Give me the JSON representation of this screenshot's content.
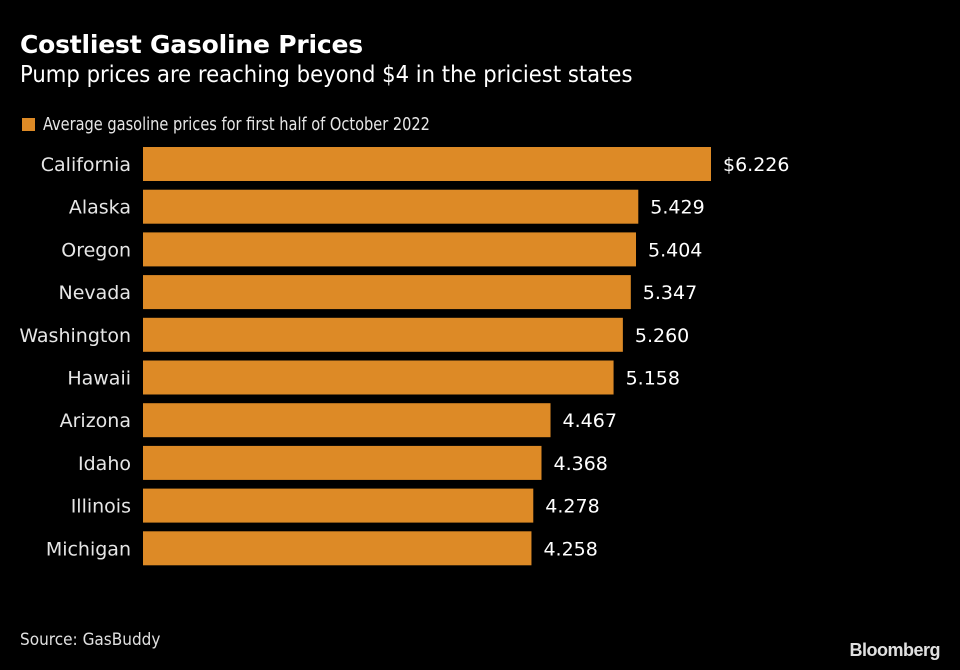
{
  "chart_data": {
    "type": "bar",
    "orientation": "horizontal",
    "title": "Costliest Gasoline Prices",
    "subtitle": "Pump prices are reaching beyond $4 in the priciest states",
    "legend": {
      "label": "Average gasoline prices for first half of October 2022",
      "placement": "top-left"
    },
    "categories": [
      "California",
      "Alaska",
      "Oregon",
      "Nevada",
      "Washington",
      "Hawaii",
      "Arizona",
      "Idaho",
      "Illinois",
      "Michigan"
    ],
    "values": [
      6.226,
      5.429,
      5.404,
      5.347,
      5.26,
      5.158,
      4.467,
      4.368,
      4.278,
      4.258
    ],
    "value_labels": [
      "$6.226",
      "5.429",
      "5.404",
      "5.347",
      "5.260",
      "5.158",
      "4.467",
      "4.368",
      "4.278",
      "4.258"
    ],
    "xlabel": "",
    "ylabel": "",
    "xlim": [
      0,
      6.226
    ],
    "grid": false,
    "bar_color": "#dd8a26",
    "source": "Source: GasBuddy",
    "brand": "Bloomberg"
  }
}
